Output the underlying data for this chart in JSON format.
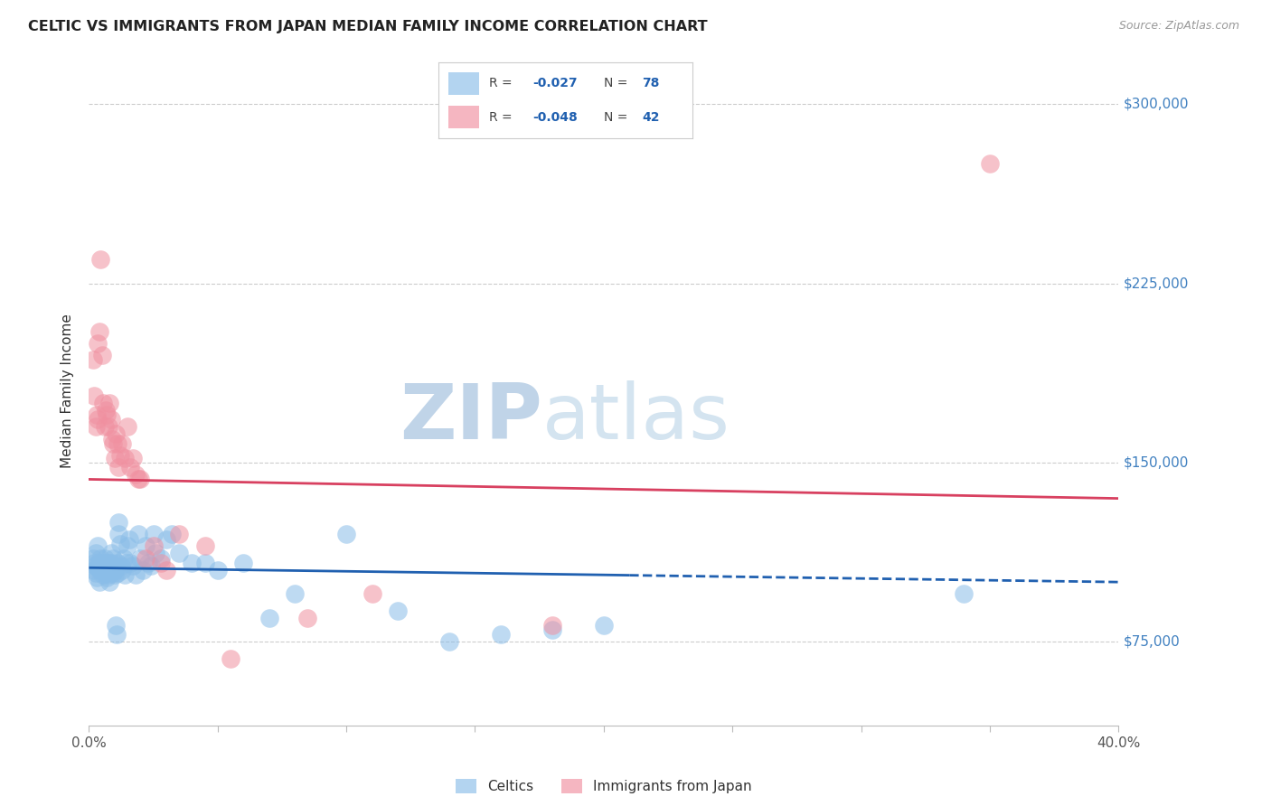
{
  "title": "CELTIC VS IMMIGRANTS FROM JAPAN MEDIAN FAMILY INCOME CORRELATION CHART",
  "source": "Source: ZipAtlas.com",
  "ylabel": "Median Family Income",
  "xlim": [
    0.0,
    40.0
  ],
  "ylim": [
    40000,
    320000
  ],
  "yticks": [
    75000,
    150000,
    225000,
    300000
  ],
  "ytick_labels": [
    "$75,000",
    "$150,000",
    "$225,000",
    "$300,000"
  ],
  "xtick_vals": [
    0,
    5,
    10,
    15,
    20,
    25,
    30,
    35,
    40
  ],
  "xtick_labels": [
    "0.0%",
    "",
    "",
    "",
    "",
    "",
    "",
    "",
    "40.0%"
  ],
  "blue_dot_color": "#8ABDE8",
  "pink_dot_color": "#F090A0",
  "blue_line_color": "#2060B0",
  "pink_line_color": "#D84060",
  "background_color": "#FFFFFF",
  "grid_color": "#CCCCCC",
  "right_label_color": "#4080C0",
  "blue_line_y0": 106000,
  "blue_line_y1": 100000,
  "pink_line_y0": 143000,
  "pink_line_y1": 135000,
  "blue_solid_end_x": 21.0,
  "celtics_x": [
    0.15,
    0.18,
    0.2,
    0.22,
    0.25,
    0.28,
    0.3,
    0.32,
    0.35,
    0.38,
    0.4,
    0.42,
    0.45,
    0.48,
    0.5,
    0.52,
    0.55,
    0.58,
    0.6,
    0.62,
    0.65,
    0.68,
    0.7,
    0.72,
    0.75,
    0.78,
    0.8,
    0.82,
    0.85,
    0.88,
    0.9,
    0.92,
    0.95,
    0.98,
    1.0,
    1.02,
    1.05,
    1.08,
    1.1,
    1.12,
    1.15,
    1.2,
    1.25,
    1.3,
    1.35,
    1.4,
    1.45,
    1.5,
    1.6,
    1.7,
    1.8,
    1.9,
    2.0,
    2.1,
    2.2,
    2.3,
    2.4,
    2.5,
    2.6,
    2.8,
    3.0,
    3.2,
    3.5,
    4.0,
    4.5,
    5.0,
    6.0,
    7.0,
    8.0,
    10.0,
    12.0,
    14.0,
    16.0,
    18.0,
    20.0,
    34.0,
    1.15,
    1.55
  ],
  "celtics_y": [
    110000,
    108000,
    105000,
    107000,
    112000,
    104000,
    102000,
    106000,
    115000,
    108000,
    105000,
    100000,
    110000,
    108000,
    107000,
    105000,
    103000,
    108000,
    110000,
    106000,
    104000,
    102000,
    108000,
    105000,
    103000,
    100000,
    108000,
    105000,
    112000,
    108000,
    106000,
    104000,
    110000,
    107000,
    105000,
    103000,
    82000,
    78000,
    108000,
    104000,
    120000,
    116000,
    107000,
    105000,
    110000,
    103000,
    108000,
    115000,
    108000,
    107000,
    103000,
    120000,
    110000,
    105000,
    115000,
    108000,
    107000,
    120000,
    112000,
    110000,
    118000,
    120000,
    112000,
    108000,
    108000,
    105000,
    108000,
    85000,
    95000,
    120000,
    88000,
    75000,
    78000,
    80000,
    82000,
    95000,
    125000,
    118000
  ],
  "japan_x": [
    0.15,
    0.2,
    0.25,
    0.3,
    0.35,
    0.4,
    0.5,
    0.55,
    0.6,
    0.65,
    0.7,
    0.75,
    0.8,
    0.85,
    0.9,
    0.95,
    1.0,
    1.05,
    1.1,
    1.15,
    1.2,
    1.3,
    1.4,
    1.5,
    1.6,
    1.7,
    1.8,
    1.9,
    2.0,
    2.2,
    2.5,
    2.8,
    3.0,
    3.5,
    4.5,
    5.5,
    8.5,
    11.0,
    18.0,
    0.45,
    0.35,
    35.0
  ],
  "japan_y": [
    193000,
    178000,
    165000,
    170000,
    168000,
    205000,
    195000,
    175000,
    165000,
    172000,
    170000,
    165000,
    175000,
    168000,
    160000,
    158000,
    152000,
    162000,
    158000,
    148000,
    153000,
    158000,
    152000,
    165000,
    148000,
    152000,
    145000,
    143000,
    143000,
    110000,
    115000,
    108000,
    105000,
    120000,
    115000,
    68000,
    85000,
    95000,
    82000,
    235000,
    200000,
    275000
  ]
}
